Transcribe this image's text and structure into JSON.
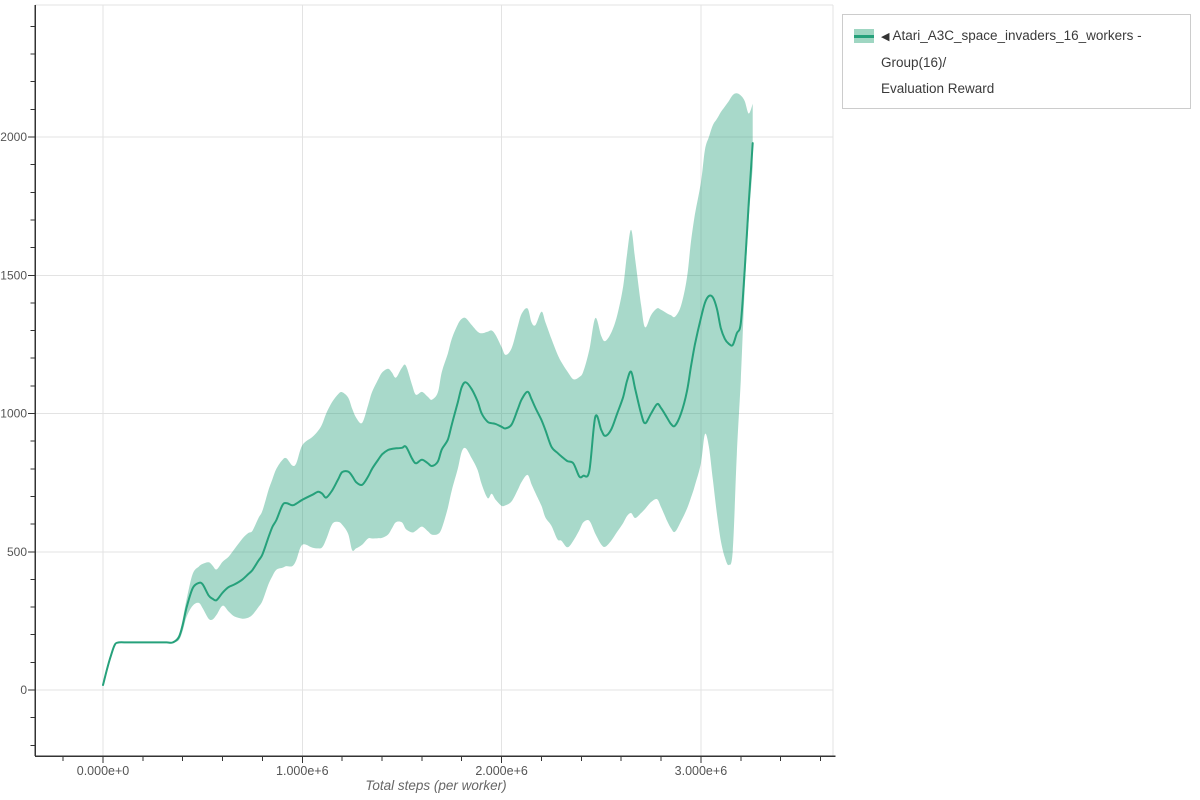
{
  "colors": {
    "background": "#ffffff",
    "axis": "#333333",
    "grid": "#e3e3e3",
    "tick_label": "#555555",
    "axis_title": "#666666",
    "legend_border": "#cccccc",
    "legend_text": "#3a3a3a",
    "series_line": "#26a17b",
    "series_band": "rgba(38,161,123,0.40)",
    "legend_swatch_band": "#9fd6c2"
  },
  "legend": {
    "items": [
      {
        "arrow": "◀",
        "line1": "Atari_A3C_space_invaders_16_workers - Group(16)/",
        "line2": "Evaluation Reward",
        "series_color": "#26a17b",
        "band_color": "#9fd6c2"
      }
    ]
  },
  "chart_data": {
    "type": "line",
    "title": "",
    "xlabel": "Total steps (per worker)",
    "ylabel": "",
    "grid": true,
    "legend_position": "top-right-outside",
    "x_unit_note": "x values are in millions of steps",
    "xlim_millions": [
      -0.34,
      3.66
    ],
    "ylim": [
      -240,
      2478
    ],
    "x_minor_step_millions": 0.2,
    "y_minor_step": 100,
    "x_ticks": [
      {
        "v": 0,
        "label": "0.000e+0"
      },
      {
        "v": 1,
        "label": "1.000e+6"
      },
      {
        "v": 2,
        "label": "2.000e+6"
      },
      {
        "v": 3,
        "label": "3.000e+6"
      }
    ],
    "y_ticks": [
      {
        "v": 0,
        "label": "0"
      },
      {
        "v": 500,
        "label": "500"
      },
      {
        "v": 1000,
        "label": "1000"
      },
      {
        "v": 1500,
        "label": "1500"
      },
      {
        "v": 2000,
        "label": "2000"
      }
    ],
    "series": [
      {
        "name": "Atari_A3C_space_invaders_16_workers - Group(16)/Evaluation Reward",
        "color": "#26a17b",
        "band_color": "rgba(38,161,123,0.40)",
        "x_millions": [
          0.0,
          0.02,
          0.04,
          0.06,
          0.08,
          0.12,
          0.16,
          0.2,
          0.24,
          0.28,
          0.32,
          0.35,
          0.38,
          0.4,
          0.42,
          0.45,
          0.48,
          0.5,
          0.53,
          0.55,
          0.57,
          0.6,
          0.63,
          0.66,
          0.7,
          0.73,
          0.75,
          0.78,
          0.8,
          0.83,
          0.85,
          0.87,
          0.9,
          0.92,
          0.95,
          0.97,
          1.0,
          1.05,
          1.08,
          1.1,
          1.12,
          1.15,
          1.18,
          1.2,
          1.23,
          1.25,
          1.27,
          1.3,
          1.33,
          1.35,
          1.38,
          1.4,
          1.43,
          1.45,
          1.47,
          1.5,
          1.52,
          1.55,
          1.57,
          1.6,
          1.63,
          1.65,
          1.68,
          1.7,
          1.73,
          1.75,
          1.78,
          1.8,
          1.82,
          1.85,
          1.88,
          1.9,
          1.93,
          1.95,
          1.97,
          2.0,
          2.02,
          2.05,
          2.08,
          2.1,
          2.13,
          2.15,
          2.17,
          2.2,
          2.22,
          2.25,
          2.28,
          2.3,
          2.33,
          2.36,
          2.39,
          2.41,
          2.44,
          2.47,
          2.5,
          2.52,
          2.55,
          2.58,
          2.61,
          2.63,
          2.65,
          2.67,
          2.7,
          2.72,
          2.75,
          2.78,
          2.8,
          2.83,
          2.85,
          2.87,
          2.9,
          2.93,
          2.95,
          2.97,
          3.0,
          3.02,
          3.04,
          3.06,
          3.08,
          3.1,
          3.12,
          3.14,
          3.16,
          3.18,
          3.2,
          3.22,
          3.24,
          3.26
        ],
        "mean": [
          18,
          75,
          125,
          165,
          172,
          172,
          172,
          172,
          172,
          172,
          172,
          172,
          190,
          235,
          300,
          368,
          387,
          382,
          342,
          330,
          325,
          352,
          372,
          382,
          400,
          420,
          434,
          468,
          490,
          552,
          590,
          615,
          668,
          676,
          668,
          674,
          688,
          706,
          717,
          710,
          696,
          722,
          762,
          788,
          790,
          774,
          752,
          742,
          772,
          800,
          832,
          852,
          868,
          872,
          874,
          876,
          880,
          838,
          820,
          833,
          820,
          810,
          826,
          870,
          905,
          960,
          1040,
          1095,
          1113,
          1088,
          1043,
          1000,
          970,
          965,
          962,
          952,
          946,
          960,
          1013,
          1050,
          1079,
          1052,
          1020,
          976,
          940,
          880,
          858,
          845,
          828,
          820,
          772,
          775,
          792,
          988,
          940,
          919,
          942,
          1000,
          1060,
          1120,
          1151,
          1090,
          1000,
          965,
          1000,
          1034,
          1020,
          985,
          962,
          956,
          1000,
          1080,
          1169,
          1250,
          1345,
          1400,
          1425,
          1420,
          1380,
          1309,
          1270,
          1252,
          1248,
          1290,
          1327,
          1520,
          1760,
          1978
        ],
        "lower": [
          18,
          75,
          125,
          165,
          172,
          172,
          172,
          172,
          172,
          172,
          172,
          172,
          180,
          214,
          266,
          305,
          315,
          296,
          258,
          255,
          272,
          305,
          284,
          266,
          258,
          262,
          272,
          300,
          322,
          382,
          412,
          435,
          442,
          448,
          448,
          470,
          525,
          515,
          512,
          516,
          545,
          600,
          608,
          598,
          565,
          506,
          512,
          525,
          548,
          548,
          549,
          550,
          562,
          585,
          607,
          606,
          582,
          570,
          576,
          591,
          574,
          562,
          564,
          585,
          658,
          722,
          800,
          862,
          874,
          838,
          795,
          744,
          694,
          710,
          688,
          666,
          668,
          682,
          722,
          752,
          778,
          744,
          712,
          666,
          624,
          594,
          545,
          540,
          516,
          540,
          578,
          606,
          612,
          565,
          526,
          518,
          540,
          572,
          604,
          630,
          640,
          622,
          640,
          655,
          680,
          690,
          662,
          612,
          585,
          572,
          610,
          655,
          695,
          740,
          820,
          925,
          880,
          760,
          640,
          540,
          480,
          452,
          505,
          850,
          1120,
          1450,
          1700,
          1890
        ],
        "upper": [
          18,
          75,
          125,
          165,
          172,
          172,
          172,
          172,
          172,
          172,
          172,
          172,
          200,
          256,
          330,
          420,
          446,
          456,
          462,
          450,
          436,
          464,
          482,
          510,
          548,
          568,
          576,
          622,
          648,
          722,
          762,
          800,
          832,
          838,
          812,
          820,
          885,
          915,
          938,
          962,
          1000,
          1042,
          1070,
          1077,
          1058,
          1018,
          985,
          966,
          1030,
          1078,
          1122,
          1148,
          1162,
          1148,
          1130,
          1166,
          1173,
          1105,
          1068,
          1078,
          1060,
          1050,
          1076,
          1150,
          1216,
          1270,
          1322,
          1342,
          1345,
          1320,
          1296,
          1290,
          1296,
          1300,
          1284,
          1240,
          1212,
          1236,
          1312,
          1360,
          1380,
          1330,
          1320,
          1368,
          1330,
          1270,
          1215,
          1186,
          1152,
          1124,
          1132,
          1152,
          1230,
          1345,
          1280,
          1262,
          1292,
          1355,
          1460,
          1580,
          1664,
          1560,
          1392,
          1312,
          1356,
          1380,
          1375,
          1362,
          1355,
          1350,
          1390,
          1490,
          1620,
          1720,
          1835,
          1953,
          2000,
          2043,
          2065,
          2090,
          2110,
          2130,
          2152,
          2158,
          2150,
          2130,
          2085,
          2120
        ]
      }
    ]
  }
}
